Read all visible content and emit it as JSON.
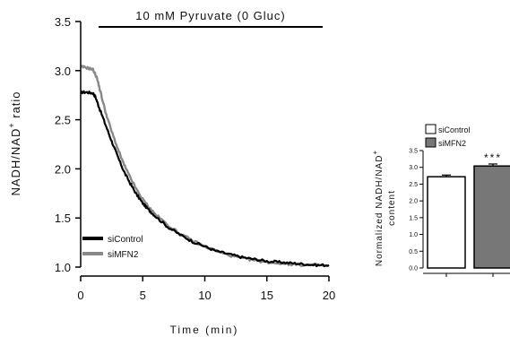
{
  "chart_data": [
    {
      "type": "line",
      "annotation": "10 mM Pyruvate (0 Gluc)",
      "xlabel": "Time (min)",
      "ylabel": "NADH/NAD",
      "ylabel_sup": "+",
      "ylabel_tail": " ratio",
      "xlim": [
        0,
        20
      ],
      "ylim": [
        1.0,
        3.5
      ],
      "xticks": [
        0,
        5,
        10,
        15,
        20
      ],
      "yticks": [
        1.0,
        1.5,
        2.0,
        2.5,
        3.0,
        3.5
      ],
      "xtick_labels": [
        "0",
        "5",
        "10",
        "15",
        "20"
      ],
      "ytick_labels": [
        "1.0",
        "1.5",
        "2.0",
        "2.5",
        "3.0",
        "3.5"
      ],
      "legend_position": "bottom-left",
      "series": [
        {
          "name": "siControl",
          "color": "#000000",
          "x": [
            0,
            0.5,
            1.0,
            1.2,
            1.5,
            2,
            2.5,
            3,
            3.5,
            4,
            4.5,
            5,
            5.5,
            6,
            7,
            8,
            9,
            10,
            11,
            12,
            13,
            14,
            15,
            16,
            17,
            18,
            19,
            20
          ],
          "y": [
            2.78,
            2.78,
            2.77,
            2.73,
            2.62,
            2.45,
            2.28,
            2.12,
            1.97,
            1.85,
            1.74,
            1.65,
            1.58,
            1.52,
            1.41,
            1.33,
            1.26,
            1.21,
            1.16,
            1.13,
            1.1,
            1.08,
            1.06,
            1.05,
            1.04,
            1.03,
            1.02,
            1.02
          ]
        },
        {
          "name": "siMFN2",
          "color": "#888888",
          "x": [
            0,
            0.5,
            1.0,
            1.3,
            1.6,
            2,
            2.5,
            3,
            3.5,
            4,
            4.5,
            5,
            5.5,
            6,
            7,
            8,
            9,
            10,
            11,
            12,
            13,
            14,
            15,
            16,
            17,
            18,
            19,
            20
          ],
          "y": [
            3.04,
            3.03,
            3.01,
            2.93,
            2.78,
            2.58,
            2.38,
            2.2,
            2.04,
            1.91,
            1.79,
            1.69,
            1.61,
            1.54,
            1.43,
            1.34,
            1.27,
            1.21,
            1.16,
            1.12,
            1.09,
            1.07,
            1.05,
            1.04,
            1.03,
            1.02,
            1.02,
            1.01
          ]
        }
      ]
    },
    {
      "type": "bar",
      "ylabel_line1": "Normalized NADH/NAD",
      "ylabel_sup": "+",
      "ylabel_line2": "content",
      "ylim": [
        0,
        3.5
      ],
      "yticks": [
        0,
        0.5,
        1.0,
        1.5,
        2.0,
        2.5,
        3.0,
        3.5
      ],
      "ytick_labels": [
        "0.0",
        "0.5",
        "1.0",
        "1.5",
        "2.0",
        "2.5",
        "3.0",
        "3.5"
      ],
      "categories": [
        "siControl",
        "siMFN2"
      ],
      "values": [
        2.72,
        3.04
      ],
      "errors": [
        0.05,
        0.06
      ],
      "colors": [
        "#ffffff",
        "#777777"
      ],
      "significance": [
        "",
        "***"
      ],
      "legend_position": "top"
    }
  ]
}
